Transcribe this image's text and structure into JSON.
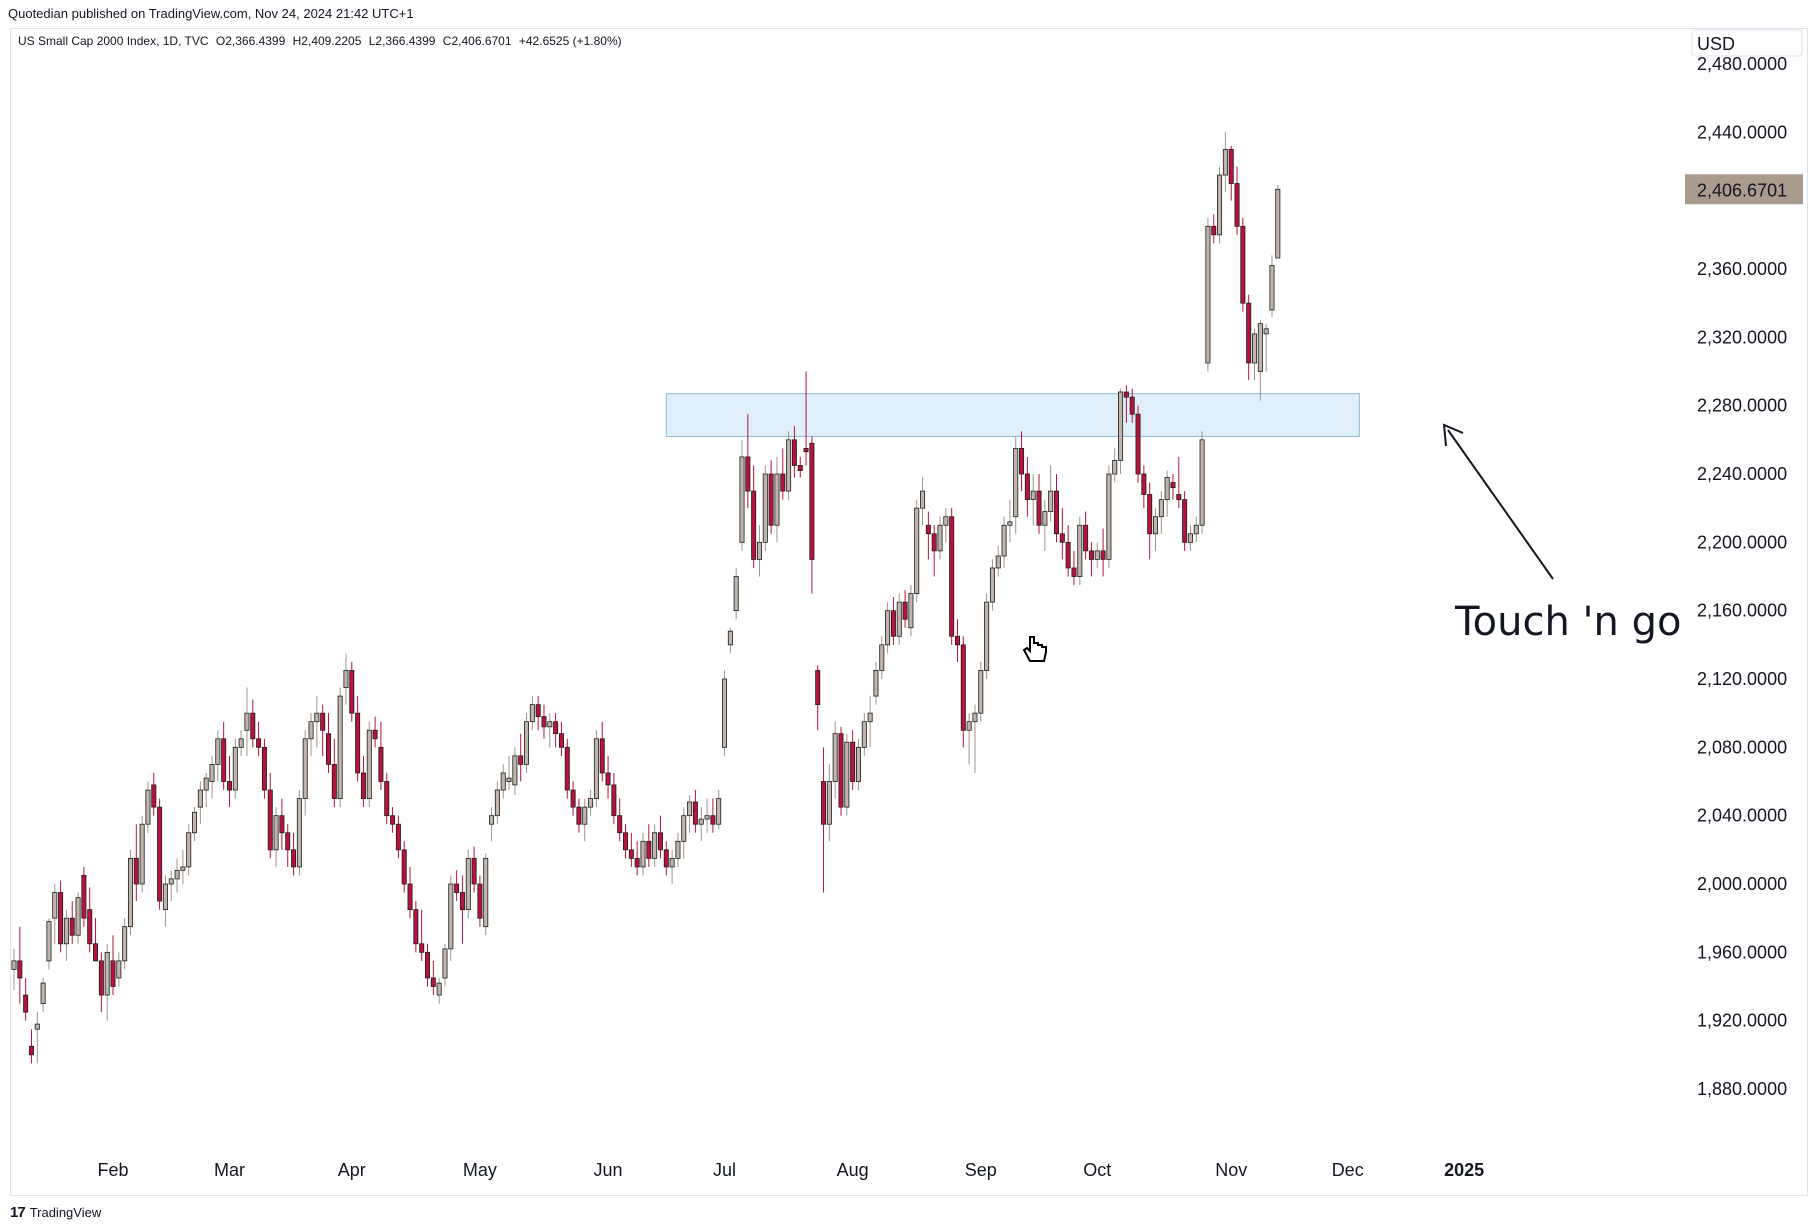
{
  "header": {
    "published": "Quotedian published on TradingView.com, Nov 24, 2024 21:42 UTC+1"
  },
  "legend": {
    "symbol": "US Small Cap 2000 Index, 1D, TVC",
    "open": "O2,366.4399",
    "high": "H2,409.2205",
    "low": "L2,366.4399",
    "close": "C2,406.6701",
    "change": "+42.6525 (+1.80%)"
  },
  "currency": "USD",
  "current_price_label": "2,406.6701",
  "annotation": "Touch 'n go",
  "footer": {
    "brand": "TradingView",
    "logo": "17"
  },
  "colors": {
    "up": "#bfb5ab",
    "down": "#b8123e",
    "zone_fill": "#dff0fb",
    "zone_border": "#8db7dc",
    "price_tag": "#a99b8e"
  },
  "chart_data": {
    "type": "candlestick",
    "title": "",
    "ylim": [
      1840,
      2500
    ],
    "yticks": [
      "2,480.0000",
      "2,440.0000",
      "2,360.0000",
      "2,320.0000",
      "2,280.0000",
      "2,240.0000",
      "2,200.0000",
      "2,160.0000",
      "2,120.0000",
      "2,080.0000",
      "2,040.0000",
      "2,000.0000",
      "1,960.0000",
      "1,920.0000",
      "1,880.0000"
    ],
    "yticks_values": [
      2480,
      2440,
      2360,
      2320,
      2280,
      2240,
      2200,
      2160,
      2120,
      2080,
      2040,
      2000,
      1960,
      1920,
      1880
    ],
    "months": [
      {
        "label": "Feb",
        "bar": 17
      },
      {
        "label": "Mar",
        "bar": 37
      },
      {
        "label": "Apr",
        "bar": 58
      },
      {
        "label": "May",
        "bar": 80
      },
      {
        "label": "Jun",
        "bar": 102
      },
      {
        "label": "Jul",
        "bar": 122
      },
      {
        "label": "Aug",
        "bar": 144
      },
      {
        "label": "Sep",
        "bar": 166
      },
      {
        "label": "Oct",
        "bar": 186
      },
      {
        "label": "Nov",
        "bar": 209
      },
      {
        "label": "Dec",
        "bar": 229
      },
      {
        "label": "2025",
        "bar": 249
      }
    ],
    "zone": {
      "low": 2262,
      "high": 2287,
      "from_bar": 112,
      "to_bar": 231
    },
    "ohlc": [
      [
        1950,
        1962,
        1938,
        1955
      ],
      [
        1955,
        1975,
        1930,
        1945
      ],
      [
        1935,
        1945,
        1920,
        1925
      ],
      [
        1905,
        1915,
        1895,
        1900
      ],
      [
        1915,
        1925,
        1895,
        1918
      ],
      [
        1930,
        1945,
        1925,
        1942
      ],
      [
        1955,
        1980,
        1950,
        1978
      ],
      [
        1980,
        2000,
        1965,
        1995
      ],
      [
        1995,
        2002,
        1960,
        1965
      ],
      [
        1965,
        1985,
        1955,
        1980
      ],
      [
        1980,
        1990,
        1965,
        1970
      ],
      [
        1970,
        1995,
        1965,
        1992
      ],
      [
        2005,
        2010,
        1975,
        1980
      ],
      [
        1985,
        1998,
        1960,
        1965
      ],
      [
        1965,
        1980,
        1955,
        1955
      ],
      [
        1955,
        1960,
        1925,
        1935
      ],
      [
        1935,
        1965,
        1920,
        1960
      ],
      [
        1955,
        1970,
        1935,
        1940
      ],
      [
        1945,
        1960,
        1940,
        1955
      ],
      [
        1955,
        1980,
        1950,
        1975
      ],
      [
        1975,
        2020,
        1970,
        2015
      ],
      [
        2015,
        2035,
        1990,
        2000
      ],
      [
        2000,
        2040,
        1995,
        2035
      ],
      [
        2035,
        2060,
        2030,
        2055
      ],
      [
        2058,
        2065,
        2040,
        2045
      ],
      [
        2045,
        2050,
        1985,
        1990
      ],
      [
        1985,
        2005,
        1975,
        2000
      ],
      [
        2000,
        2008,
        1990,
        2003
      ],
      [
        2003,
        2015,
        1995,
        2008
      ],
      [
        2008,
        2020,
        2000,
        2010
      ],
      [
        2010,
        2035,
        2005,
        2030
      ],
      [
        2030,
        2045,
        2025,
        2042
      ],
      [
        2045,
        2060,
        2035,
        2055
      ],
      [
        2055,
        2065,
        2045,
        2062
      ],
      [
        2060,
        2075,
        2050,
        2070
      ],
      [
        2070,
        2090,
        2060,
        2085
      ],
      [
        2085,
        2095,
        2055,
        2060
      ],
      [
        2060,
        2075,
        2045,
        2055
      ],
      [
        2055,
        2085,
        2050,
        2080
      ],
      [
        2080,
        2090,
        2075,
        2085
      ],
      [
        2090,
        2115,
        2075,
        2100
      ],
      [
        2100,
        2108,
        2080,
        2085
      ],
      [
        2085,
        2095,
        2075,
        2080
      ],
      [
        2080,
        2085,
        2050,
        2055
      ],
      [
        2055,
        2065,
        2015,
        2020
      ],
      [
        2020,
        2045,
        2010,
        2040
      ],
      [
        2040,
        2050,
        2020,
        2030
      ],
      [
        2030,
        2035,
        2010,
        2020
      ],
      [
        2020,
        2030,
        2005,
        2010
      ],
      [
        2010,
        2055,
        2005,
        2050
      ],
      [
        2050,
        2090,
        2040,
        2085
      ],
      [
        2085,
        2100,
        2075,
        2095
      ],
      [
        2095,
        2110,
        2080,
        2100
      ],
      [
        2100,
        2105,
        2075,
        2090
      ],
      [
        2088,
        2100,
        2065,
        2070
      ],
      [
        2070,
        2085,
        2045,
        2050
      ],
      [
        2050,
        2115,
        2045,
        2110
      ],
      [
        2115,
        2135,
        2105,
        2125
      ],
      [
        2125,
        2130,
        2095,
        2100
      ],
      [
        2100,
        2110,
        2060,
        2065
      ],
      [
        2065,
        2075,
        2045,
        2050
      ],
      [
        2050,
        2095,
        2045,
        2090
      ],
      [
        2090,
        2098,
        2080,
        2085
      ],
      [
        2080,
        2095,
        2055,
        2060
      ],
      [
        2060,
        2065,
        2035,
        2040
      ],
      [
        2040,
        2045,
        2030,
        2035
      ],
      [
        2035,
        2040,
        2015,
        2020
      ],
      [
        2020,
        2025,
        1995,
        2000
      ],
      [
        2000,
        2010,
        1980,
        1985
      ],
      [
        1985,
        1990,
        1960,
        1965
      ],
      [
        1965,
        1985,
        1955,
        1960
      ],
      [
        1960,
        1965,
        1940,
        1945
      ],
      [
        1945,
        1955,
        1935,
        1940
      ],
      [
        1935,
        1945,
        1930,
        1942
      ],
      [
        1945,
        1965,
        1940,
        1962
      ],
      [
        1962,
        2005,
        1955,
        2000
      ],
      [
        2000,
        2008,
        1990,
        1995
      ],
      [
        1995,
        2005,
        1965,
        1985
      ],
      [
        1985,
        2020,
        1980,
        2015
      ],
      [
        2015,
        2022,
        1995,
        2000
      ],
      [
        2000,
        2005,
        1975,
        1980
      ],
      [
        1975,
        2018,
        1970,
        2015
      ],
      [
        2035,
        2045,
        2025,
        2040
      ],
      [
        2040,
        2060,
        2035,
        2055
      ],
      [
        2055,
        2070,
        2050,
        2065
      ],
      [
        2060,
        2075,
        2055,
        2062
      ],
      [
        2058,
        2080,
        2052,
        2075
      ],
      [
        2075,
        2088,
        2060,
        2070
      ],
      [
        2070,
        2100,
        2065,
        2095
      ],
      [
        2095,
        2110,
        2090,
        2105
      ],
      [
        2105,
        2110,
        2090,
        2098
      ],
      [
        2098,
        2105,
        2085,
        2092
      ],
      [
        2092,
        2100,
        2080,
        2095
      ],
      [
        2095,
        2100,
        2080,
        2088
      ],
      [
        2088,
        2095,
        2075,
        2080
      ],
      [
        2080,
        2085,
        2050,
        2055
      ],
      [
        2055,
        2060,
        2040,
        2045
      ],
      [
        2045,
        2050,
        2030,
        2035
      ],
      [
        2035,
        2050,
        2025,
        2045
      ],
      [
        2045,
        2055,
        2040,
        2050
      ],
      [
        2050,
        2090,
        2045,
        2085
      ],
      [
        2085,
        2095,
        2060,
        2065
      ],
      [
        2065,
        2075,
        2050,
        2058
      ],
      [
        2058,
        2065,
        2035,
        2040
      ],
      [
        2040,
        2050,
        2025,
        2030
      ],
      [
        2030,
        2035,
        2015,
        2020
      ],
      [
        2020,
        2030,
        2010,
        2015
      ],
      [
        2015,
        2025,
        2005,
        2010
      ],
      [
        2010,
        2030,
        2005,
        2025
      ],
      [
        2025,
        2035,
        2010,
        2015
      ],
      [
        2015,
        2035,
        2010,
        2030
      ],
      [
        2030,
        2040,
        2015,
        2020
      ],
      [
        2020,
        2025,
        2005,
        2010
      ],
      [
        2010,
        2020,
        2000,
        2015
      ],
      [
        2015,
        2030,
        2010,
        2025
      ],
      [
        2025,
        2045,
        2015,
        2040
      ],
      [
        2040,
        2052,
        2030,
        2048
      ],
      [
        2048,
        2055,
        2030,
        2035
      ],
      [
        2035,
        2045,
        2025,
        2038
      ],
      [
        2038,
        2050,
        2030,
        2040
      ],
      [
        2040,
        2050,
        2030,
        2035
      ],
      [
        2035,
        2055,
        2032,
        2050
      ],
      [
        2080,
        2125,
        2075,
        2120
      ],
      [
        2140,
        2150,
        2135,
        2148
      ],
      [
        2160,
        2185,
        2155,
        2180
      ],
      [
        2200,
        2260,
        2195,
        2250
      ],
      [
        2250,
        2275,
        2220,
        2230
      ],
      [
        2230,
        2245,
        2185,
        2190
      ],
      [
        2190,
        2210,
        2180,
        2200
      ],
      [
        2200,
        2245,
        2195,
        2240
      ],
      [
        2240,
        2248,
        2205,
        2210
      ],
      [
        2210,
        2250,
        2200,
        2240
      ],
      [
        2240,
        2255,
        2225,
        2230
      ],
      [
        2230,
        2265,
        2225,
        2260
      ],
      [
        2260,
        2268,
        2238,
        2245
      ],
      [
        2245,
        2250,
        2238,
        2242
      ],
      [
        2255,
        2300,
        2245,
        2253
      ],
      [
        2258,
        2262,
        2170,
        2190
      ],
      [
        2125,
        2128,
        2090,
        2105
      ],
      [
        2060,
        2080,
        1995,
        2035
      ],
      [
        2035,
        2070,
        2025,
        2060
      ],
      [
        2060,
        2095,
        2050,
        2088
      ],
      [
        2088,
        2092,
        2040,
        2045
      ],
      [
        2045,
        2088,
        2040,
        2083
      ],
      [
        2083,
        2090,
        2055,
        2060
      ],
      [
        2060,
        2085,
        2055,
        2080
      ],
      [
        2080,
        2100,
        2075,
        2095
      ],
      [
        2095,
        2110,
        2080,
        2100
      ],
      [
        2110,
        2130,
        2105,
        2125
      ],
      [
        2125,
        2145,
        2120,
        2140
      ],
      [
        2140,
        2165,
        2135,
        2160
      ],
      [
        2160,
        2168,
        2140,
        2145
      ],
      [
        2145,
        2170,
        2140,
        2165
      ],
      [
        2165,
        2172,
        2150,
        2155
      ],
      [
        2150,
        2175,
        2145,
        2170
      ],
      [
        2170,
        2225,
        2165,
        2220
      ],
      [
        2220,
        2238,
        2210,
        2230
      ],
      [
        2210,
        2218,
        2190,
        2205
      ],
      [
        2205,
        2210,
        2180,
        2195
      ],
      [
        2195,
        2215,
        2190,
        2210
      ],
      [
        2210,
        2220,
        2200,
        2215
      ],
      [
        2215,
        2220,
        2140,
        2145
      ],
      [
        2145,
        2155,
        2130,
        2140
      ],
      [
        2140,
        2145,
        2080,
        2090
      ],
      [
        2090,
        2100,
        2070,
        2095
      ],
      [
        2095,
        2105,
        2065,
        2100
      ],
      [
        2100,
        2130,
        2095,
        2125
      ],
      [
        2125,
        2170,
        2120,
        2165
      ],
      [
        2165,
        2190,
        2160,
        2185
      ],
      [
        2185,
        2198,
        2180,
        2192
      ],
      [
        2192,
        2215,
        2185,
        2210
      ],
      [
        2210,
        2225,
        2200,
        2212
      ],
      [
        2215,
        2262,
        2205,
        2255
      ],
      [
        2255,
        2265,
        2230,
        2240
      ],
      [
        2240,
        2250,
        2215,
        2225
      ],
      [
        2225,
        2240,
        2210,
        2230
      ],
      [
        2230,
        2240,
        2205,
        2210
      ],
      [
        2210,
        2225,
        2195,
        2218
      ],
      [
        2218,
        2245,
        2212,
        2230
      ],
      [
        2230,
        2240,
        2200,
        2205
      ],
      [
        2205,
        2220,
        2190,
        2200
      ],
      [
        2200,
        2210,
        2180,
        2185
      ],
      [
        2185,
        2195,
        2175,
        2180
      ],
      [
        2180,
        2215,
        2175,
        2210
      ],
      [
        2210,
        2218,
        2190,
        2195
      ],
      [
        2195,
        2200,
        2180,
        2190
      ],
      [
        2190,
        2200,
        2185,
        2195
      ],
      [
        2195,
        2208,
        2180,
        2190
      ],
      [
        2190,
        2245,
        2185,
        2240
      ],
      [
        2240,
        2255,
        2235,
        2248
      ],
      [
        2248,
        2290,
        2240,
        2288
      ],
      [
        2288,
        2292,
        2270,
        2285
      ],
      [
        2285,
        2290,
        2270,
        2275
      ],
      [
        2275,
        2280,
        2235,
        2240
      ],
      [
        2240,
        2245,
        2220,
        2228
      ],
      [
        2228,
        2235,
        2190,
        2205
      ],
      [
        2205,
        2220,
        2195,
        2215
      ],
      [
        2215,
        2230,
        2205,
        2225
      ],
      [
        2225,
        2242,
        2215,
        2238
      ],
      [
        2235,
        2240,
        2225,
        2232
      ],
      [
        2228,
        2250,
        2220,
        2225
      ],
      [
        2225,
        2230,
        2195,
        2200
      ],
      [
        2200,
        2210,
        2195,
        2205
      ],
      [
        2205,
        2215,
        2200,
        2210
      ],
      [
        2210,
        2265,
        2205,
        2260
      ],
      [
        2305,
        2390,
        2300,
        2385
      ],
      [
        2385,
        2392,
        2375,
        2380
      ],
      [
        2380,
        2420,
        2375,
        2415
      ],
      [
        2415,
        2440,
        2405,
        2430
      ],
      [
        2430,
        2432,
        2400,
        2410
      ],
      [
        2410,
        2420,
        2380,
        2385
      ],
      [
        2385,
        2390,
        2335,
        2340
      ],
      [
        2340,
        2345,
        2295,
        2305
      ],
      [
        2305,
        2325,
        2295,
        2322
      ],
      [
        2300,
        2330,
        2283,
        2328
      ],
      [
        2322,
        2328,
        2300,
        2325
      ],
      [
        2336,
        2368,
        2332,
        2362
      ],
      [
        2366.4399,
        2409.2205,
        2366.4399,
        2406.6701
      ]
    ]
  }
}
